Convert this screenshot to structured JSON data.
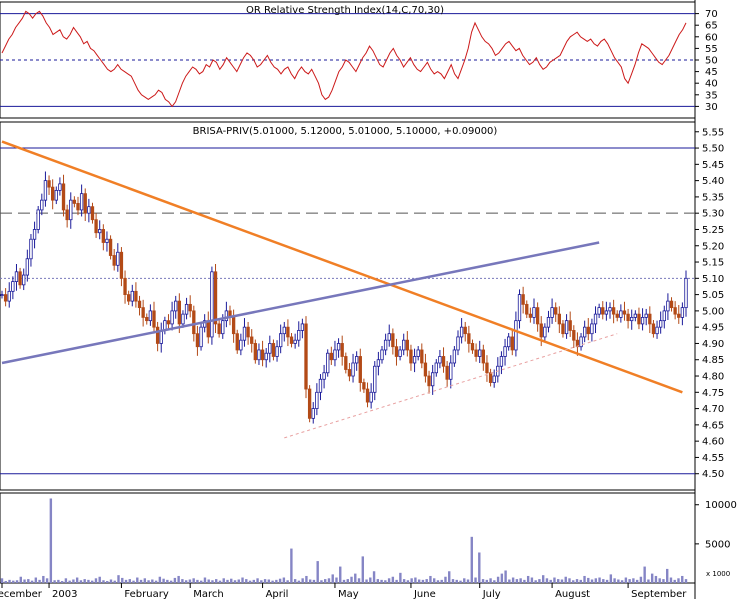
{
  "chart_data": [
    {
      "type": "line",
      "title": "OR Relative Strength Index(14,C,70,30)",
      "ylim": [
        25,
        75
      ],
      "ticks": [
        30,
        35,
        40,
        45,
        50,
        55,
        60,
        65,
        70
      ],
      "reference_levels": [
        70,
        50,
        30
      ],
      "series": [
        {
          "name": "RSI",
          "values": [
            53,
            56,
            59,
            61,
            64,
            66,
            68,
            71,
            70,
            68,
            70,
            71,
            69,
            66,
            64,
            61,
            62,
            63,
            60,
            59,
            61,
            64,
            62,
            60,
            57,
            58,
            55,
            54,
            52,
            50,
            48,
            46,
            45,
            46,
            48,
            46,
            45,
            44,
            43,
            40,
            37,
            35,
            34,
            33,
            34,
            35,
            37,
            36,
            33,
            32,
            30,
            32,
            36,
            40,
            43,
            45,
            47,
            46,
            44,
            45,
            48,
            47,
            50,
            49,
            46,
            48,
            51,
            49,
            47,
            45,
            48,
            51,
            53,
            52,
            50,
            47,
            48,
            50,
            52,
            49,
            47,
            46,
            44,
            46,
            47,
            44,
            42,
            45,
            47,
            45,
            44,
            46,
            43,
            40,
            35,
            33,
            34,
            37,
            41,
            45,
            47,
            50,
            49,
            47,
            45,
            48,
            51,
            53,
            56,
            54,
            51,
            48,
            47,
            50,
            53,
            55,
            52,
            50,
            47,
            49,
            51,
            48,
            46,
            45,
            47,
            49,
            46,
            44,
            45,
            44,
            42,
            45,
            48,
            44,
            42,
            46,
            50,
            55,
            62,
            66,
            63,
            60,
            58,
            57,
            55,
            52,
            53,
            55,
            57,
            58,
            56,
            54,
            55,
            52,
            50,
            48,
            49,
            51,
            48,
            46,
            47,
            49,
            50,
            51,
            52,
            55,
            58,
            60,
            61,
            62,
            60,
            59,
            58,
            59,
            57,
            56,
            58,
            59,
            57,
            54,
            51,
            49,
            47,
            42,
            40,
            44,
            48,
            53,
            57,
            56,
            55,
            53,
            51,
            49,
            48,
            50,
            52,
            55,
            58,
            61,
            63,
            66
          ]
        }
      ]
    },
    {
      "type": "line",
      "title": "BRISA-PRIV(5.01000, 5.12000, 5.01000, 5.10000, +0.09000)",
      "ylim": [
        4.45,
        5.58
      ],
      "ticks": [
        4.5,
        4.55,
        4.6,
        4.65,
        4.7,
        4.75,
        4.8,
        4.85,
        4.9,
        4.95,
        5.0,
        5.05,
        5.1,
        5.15,
        5.2,
        5.25,
        5.3,
        5.35,
        5.4,
        5.45,
        5.5,
        5.55
      ],
      "x_labels": [
        "December",
        "2003",
        "February",
        "March",
        "April",
        "May",
        "June",
        "July",
        "August",
        "September"
      ],
      "horizontal_levels": [
        5.5,
        5.3,
        5.1,
        4.5
      ],
      "trendlines": [
        {
          "color": "#f07f26",
          "from_day": 0,
          "from_price": 5.52,
          "to_day": 188,
          "to_price": 4.75
        },
        {
          "color": "#7777bb",
          "from_day": 0,
          "from_price": 4.84,
          "to_day": 165,
          "to_price": 5.21
        },
        {
          "color": "#e8a0a0",
          "from_day": 78,
          "from_price": 4.61,
          "to_day": 170,
          "to_price": 4.93
        }
      ],
      "series": [
        {
          "name": "Close",
          "values": [
            5.05,
            5.03,
            5.06,
            5.09,
            5.12,
            5.08,
            5.11,
            5.16,
            5.22,
            5.25,
            5.31,
            5.34,
            5.4,
            5.38,
            5.34,
            5.37,
            5.39,
            5.31,
            5.28,
            5.34,
            5.33,
            5.31,
            5.36,
            5.3,
            5.32,
            5.28,
            5.24,
            5.25,
            5.21,
            5.22,
            5.17,
            5.14,
            5.18,
            5.1,
            5.05,
            5.03,
            5.06,
            5.03,
            5.01,
            4.98,
            4.97,
            5.0,
            4.95,
            4.9,
            4.94,
            4.97,
            4.96,
            5.0,
            5.03,
            4.96,
            4.99,
            5.02,
            5.0,
            4.93,
            4.89,
            4.95,
            4.97,
            4.92,
            5.12,
            4.96,
            4.93,
            4.97,
            5.0,
            4.98,
            4.93,
            4.88,
            4.91,
            4.95,
            4.92,
            4.9,
            4.85,
            4.88,
            4.85,
            4.87,
            4.9,
            4.86,
            4.89,
            4.93,
            4.95,
            4.92,
            4.9,
            4.91,
            4.94,
            4.96,
            4.76,
            4.67,
            4.7,
            4.75,
            4.79,
            4.81,
            4.87,
            4.85,
            4.88,
            4.9,
            4.86,
            4.82,
            4.8,
            4.84,
            4.86,
            4.78,
            4.76,
            4.72,
            4.75,
            4.83,
            4.85,
            4.88,
            4.91,
            4.93,
            4.89,
            4.86,
            4.88,
            4.91,
            4.88,
            4.84,
            4.86,
            4.88,
            4.84,
            4.8,
            4.77,
            4.81,
            4.84,
            4.86,
            4.83,
            4.79,
            4.84,
            4.88,
            4.92,
            4.95,
            4.93,
            4.9,
            4.88,
            4.86,
            4.88,
            4.84,
            4.81,
            4.78,
            4.8,
            4.83,
            4.86,
            4.89,
            4.92,
            4.88,
            4.97,
            5.05,
            5.02,
            4.99,
            4.98,
            5.01,
            4.96,
            4.92,
            4.95,
            4.98,
            5.01,
            4.99,
            4.96,
            4.93,
            4.97,
            4.94,
            4.91,
            4.89,
            4.92,
            4.95,
            4.93,
            4.96,
            4.99,
            5.01,
            4.99,
            5.0,
            5.01,
            4.99,
            4.98,
            5.0,
            4.99,
            4.97,
            4.98,
            4.99,
            4.96,
            4.98,
            4.99,
            4.96,
            4.93,
            4.95,
            4.97,
            5.0,
            5.03,
            5.01,
            4.99,
            4.98,
            5.01,
            5.1
          ]
        }
      ]
    },
    {
      "type": "bar",
      "title": "",
      "ylim": [
        0,
        11500
      ],
      "ticks": [
        5000,
        10000
      ],
      "unit_label": "x 1000",
      "series": [
        {
          "name": "Volume",
          "values": [
            600,
            250,
            400,
            300,
            350,
            800,
            450,
            500,
            300,
            700,
            400,
            900,
            600,
            10800,
            350,
            400,
            250,
            600,
            300,
            450,
            700,
            350,
            500,
            400,
            300,
            600,
            800,
            350,
            250,
            450,
            300,
            1000,
            650,
            400,
            500,
            300,
            700,
            400,
            600,
            350,
            450,
            300,
            800,
            550,
            400,
            300,
            650,
            900,
            500,
            350,
            450,
            600,
            400,
            300,
            700,
            450,
            350,
            500,
            300,
            600,
            400,
            550,
            350,
            450,
            700,
            500,
            300,
            400,
            600,
            350,
            500,
            450,
            300,
            400,
            550,
            700,
            350,
            4400,
            500,
            300,
            600,
            900,
            450,
            400,
            2800,
            350,
            500,
            600,
            1100,
            700,
            2100,
            400,
            500,
            800,
            1200,
            600,
            3400,
            450,
            700,
            1500,
            500,
            400,
            350,
            600,
            800,
            400,
            1300,
            500,
            350,
            600,
            700,
            450,
            400,
            500,
            900,
            600,
            350,
            400,
            800,
            1500,
            500,
            400,
            300,
            600,
            450,
            5900,
            700,
            3900,
            500,
            400,
            600,
            350,
            800,
            1200,
            1600,
            450,
            700,
            500,
            600,
            400,
            900,
            700,
            350,
            500,
            1000,
            600,
            400,
            700,
            500,
            450,
            800,
            600,
            350,
            500,
            400,
            900,
            650,
            450,
            600,
            700,
            500,
            400,
            1100,
            600,
            450,
            350,
            700,
            500,
            600,
            400,
            800,
            2100,
            450,
            1200,
            900,
            600,
            500,
            1800,
            700,
            400,
            600,
            900,
            500
          ]
        }
      ]
    }
  ]
}
